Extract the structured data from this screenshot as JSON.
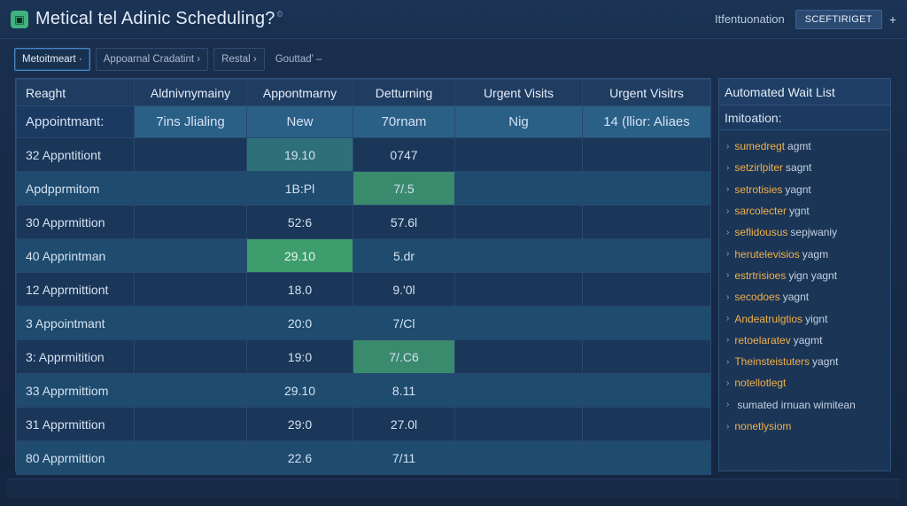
{
  "topbar": {
    "title": "Metical tel Adinic Scheduling?",
    "title_mark": "©",
    "app_icon": "calendar-icon",
    "info_link": "Itfentuonation",
    "button_label": "SCEFTIRIGET",
    "plus": "+"
  },
  "breadcrumbs": [
    {
      "label": "Metoitmeart ·"
    },
    {
      "label": "Appoarnal Cradatint ›"
    },
    {
      "label": "Restal ›"
    },
    {
      "label": "Gouttad' –"
    }
  ],
  "grid": {
    "columns": [
      "Reaght",
      "Aldnivnymainy",
      "Appontmarny",
      "Detturning",
      "Urgent Visits",
      "Urgent Visitrs"
    ],
    "subheader": [
      "Appointmant:",
      "7ins Jlialing",
      "New",
      "70rnam",
      "Nig",
      "14 (llior: Aliaes"
    ],
    "rows": [
      {
        "label": "32 Appntitiont",
        "c2": "19.10",
        "c3": "0747"
      },
      {
        "label": "Apdpprmitom",
        "c2": "1B:Pl",
        "c3": "7/.5"
      },
      {
        "label": "30 Apprmittion",
        "c2": "52:6",
        "c3": "57.6l"
      },
      {
        "label": "40 Apprintman",
        "c2": "29.10",
        "c3": "5.dr"
      },
      {
        "label": "12 Apprmittiont",
        "c2": "18.0",
        "c3": "9.'0l"
      },
      {
        "label": "3 Appointmant",
        "c2": "20:0",
        "c3": "7/Cl"
      },
      {
        "label": "3: Apprmitition",
        "c2": "19:0",
        "c3": "7/.C6"
      },
      {
        "label": "33 Apprmittiom",
        "c2": "29.10",
        "c3": "8.11"
      },
      {
        "label": "31 Apprmittion",
        "c2": "29:0",
        "c3": "27.0l"
      },
      {
        "label": "80 Apprmittion",
        "c2": "22.6",
        "c3": "7/11"
      }
    ]
  },
  "waitlist": {
    "title": "Automated Wait List",
    "subtitle": "Imitoation:",
    "items": [
      {
        "hl": "sumedregt",
        "rest": "agmt"
      },
      {
        "hl": "setzirlpiter",
        "rest": "sagnt"
      },
      {
        "hl": "setrotisies",
        "rest": "yagnt"
      },
      {
        "hl": "sarcolecter",
        "rest": "ygnt"
      },
      {
        "hl": "seflidousus",
        "rest": "sepjwaniy"
      },
      {
        "hl": "herutelevisios",
        "rest": "yagm"
      },
      {
        "hl": "estrtrisioes",
        "rest": "yign yagnt"
      },
      {
        "hl": "secodoes",
        "rest": "yagnt"
      },
      {
        "hl": "Andeatrulgtios",
        "rest": "yignt"
      },
      {
        "hl": "retoelaratev",
        "rest": "yagmt"
      },
      {
        "hl": "Theinsteistuters",
        "rest": "yagnt"
      },
      {
        "hl": "notellotlegt",
        "rest": ""
      },
      {
        "hl": "",
        "rest": "sumated irnuan wimitean"
      },
      {
        "hl": "nonetlysiom",
        "rest": ""
      }
    ]
  }
}
